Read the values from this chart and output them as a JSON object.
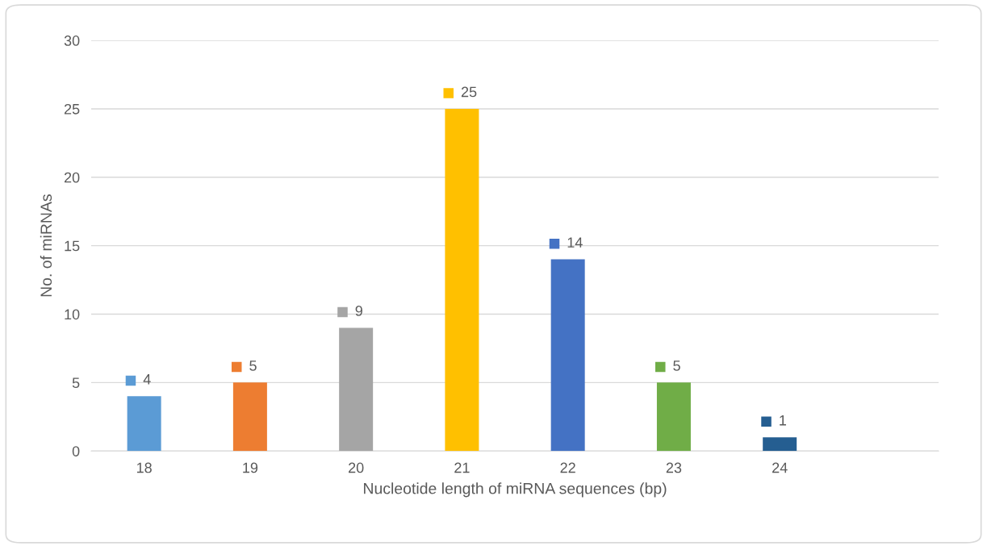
{
  "chart_data": {
    "type": "bar",
    "xlabel": "Nucleotide length of miRNA sequences (bp)",
    "ylabel": "No. of miRNAs",
    "categories": [
      "18",
      "19",
      "20",
      "21",
      "22",
      "23",
      "24",
      null
    ],
    "values": [
      4,
      5,
      9,
      25,
      14,
      5,
      1,
      null
    ],
    "colors": [
      "#5b9bd5",
      "#ed7d31",
      "#a5a5a5",
      "#ffc000",
      "#4472c4",
      "#70ad47",
      "#255e91",
      "#cccccc"
    ],
    "ylim": [
      0,
      30
    ],
    "yticks": [
      0,
      5,
      10,
      15,
      20,
      25,
      30
    ],
    "grid": "y",
    "data_labels": true
  }
}
